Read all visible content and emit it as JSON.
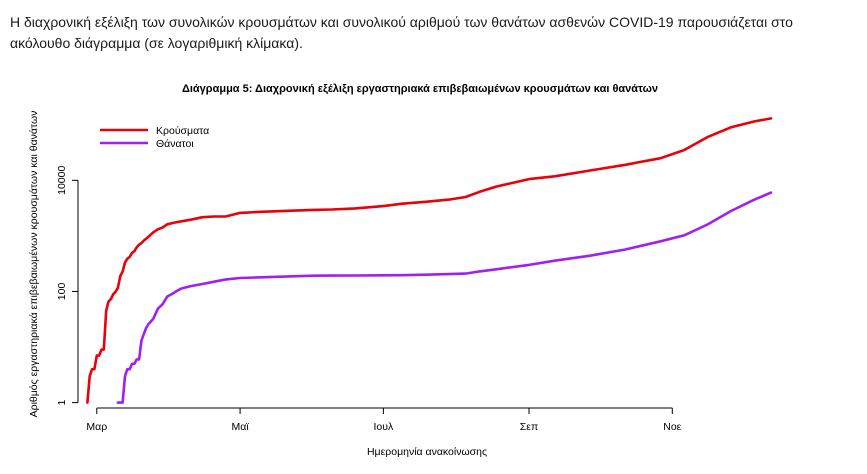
{
  "intro_text": "Η διαχρονική εξέλιξη των συνολικών κρουσμάτων και συνολικού αριθμού των θανάτων ασθενών COVID-19 παρουσιάζεται στο ακόλουθο διάγραμμα (σε λογαριθμική κλίμακα).",
  "chart_data": {
    "type": "line",
    "title": "Διάγραμμα 5: Διαχρονική εξέλιξη εργαστηριακά επιβεβαιωμένων κρουσμάτων και θανάτων",
    "xlabel": "Ημερομηνία ανακοίνωσης",
    "ylabel": "Αριθμός εργαστηριακά επιβεβαιωμένων κρουσμάτων και θανάτων",
    "y_scale": "log",
    "ylim": [
      0.8,
      200000
    ],
    "xlim": [
      -8,
      290
    ],
    "x_unit": "days since 1 March 2020",
    "grid": false,
    "legend_position": "top-left",
    "x_ticks": [
      {
        "value": 0,
        "label": "Μαρ"
      },
      {
        "value": 61,
        "label": "Μαϊ"
      },
      {
        "value": 122,
        "label": "Ιουλ"
      },
      {
        "value": 184,
        "label": "Σεπ"
      },
      {
        "value": 245,
        "label": "Νοε"
      }
    ],
    "y_ticks": [
      {
        "value": 1,
        "label": "1"
      },
      {
        "value": 100,
        "label": "100"
      },
      {
        "value": 10000,
        "label": "10000"
      }
    ],
    "series": [
      {
        "name": "Κρούσματα",
        "color": "#e8000b",
        "x": [
          -4,
          -3,
          -2,
          -1,
          0,
          1,
          2,
          3,
          4,
          5,
          6,
          7,
          8,
          9,
          10,
          11,
          12,
          13,
          14,
          15,
          16,
          17,
          18,
          19,
          20,
          22,
          24,
          26,
          28,
          30,
          33,
          36,
          40,
          45,
          50,
          55,
          61,
          70,
          80,
          92,
          100,
          110,
          122,
          130,
          140,
          150,
          157,
          163,
          170,
          177,
          184,
          195,
          210,
          225,
          240,
          250,
          260,
          270,
          280,
          287
        ],
        "values": [
          1,
          3,
          4,
          4,
          7,
          7,
          9,
          9,
          45,
          66,
          73,
          89,
          99,
          117,
          190,
          228,
          331,
          387,
          418,
          495,
          530,
          624,
          695,
          743,
          821,
          966,
          1156,
          1314,
          1415,
          1613,
          1735,
          1832,
          1955,
          2170,
          2235,
          2245,
          2591,
          2710,
          2810,
          2935,
          2980,
          3120,
          3432,
          3800,
          4100,
          4500,
          5000,
          6200,
          7700,
          9000,
          10500,
          11800,
          15000,
          19000,
          25000,
          35000,
          60000,
          90000,
          115000,
          130000
        ]
      },
      {
        "name": "Θάνατοι",
        "color": "#a020f0",
        "x": [
          9,
          10,
          11,
          12,
          13,
          14,
          15,
          16,
          17,
          18,
          19,
          20,
          21,
          22,
          24,
          26,
          28,
          30,
          32,
          34,
          36,
          40,
          45,
          50,
          55,
          61,
          70,
          80,
          92,
          100,
          110,
          122,
          130,
          140,
          150,
          157,
          163,
          170,
          184,
          195,
          210,
          225,
          240,
          250,
          260,
          270,
          280,
          287
        ],
        "values": [
          1,
          1,
          1,
          3,
          4,
          4,
          5,
          5,
          6,
          6,
          13,
          17,
          22,
          26,
          32,
          49,
          59,
          81,
          90,
          102,
          113,
          125,
          136,
          150,
          165,
          175,
          180,
          185,
          192,
          193,
          194,
          195,
          196,
          200,
          205,
          210,
          230,
          250,
          300,
          357,
          440,
          570,
          800,
          1020,
          1600,
          2800,
          4500,
          6000
        ]
      }
    ]
  }
}
